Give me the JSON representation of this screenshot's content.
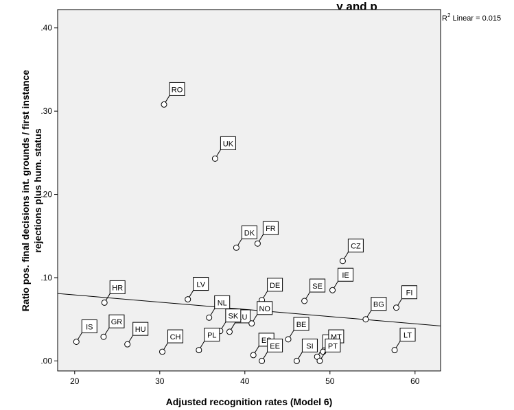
{
  "chart_data": {
    "type": "scatter",
    "title": "y and p",
    "xlabel": "Adjusted recognition rates (Model 6)",
    "ylabel_line1": "Ratio pos. final decisions  int. grounds / first instance",
    "ylabel_line2": "rejections plus hum. status",
    "xlim": [
      18,
      63
    ],
    "ylim": [
      -0.012,
      0.422
    ],
    "x_ticks": [
      20,
      30,
      40,
      50,
      60
    ],
    "x_tick_labels": [
      "20",
      "30",
      "40",
      "50",
      "60"
    ],
    "y_ticks": [
      0.0,
      0.1,
      0.2,
      0.3,
      0.4
    ],
    "y_tick_labels": [
      ".00",
      ".10",
      ".20",
      ".30",
      ".40"
    ],
    "fit": {
      "label_prefix": "R",
      "label_sup": "2",
      "label_rest": " Linear = 0.015",
      "x0": 18,
      "y0": 0.081,
      "x1": 63,
      "y1": 0.042
    },
    "points": [
      {
        "label": "RO",
        "x": 30.5,
        "y": 0.308
      },
      {
        "label": "UK",
        "x": 36.5,
        "y": 0.243
      },
      {
        "label": "DK",
        "x": 39.0,
        "y": 0.136
      },
      {
        "label": "FR",
        "x": 41.5,
        "y": 0.141
      },
      {
        "label": "CZ",
        "x": 51.5,
        "y": 0.12
      },
      {
        "label": "HR",
        "x": 23.5,
        "y": 0.07
      },
      {
        "label": "LV",
        "x": 33.3,
        "y": 0.074
      },
      {
        "label": "DE",
        "x": 42.0,
        "y": 0.073
      },
      {
        "label": "SE",
        "x": 47.0,
        "y": 0.072
      },
      {
        "label": "IE",
        "x": 50.3,
        "y": 0.085
      },
      {
        "label": "BG",
        "x": 54.2,
        "y": 0.05
      },
      {
        "label": "FI",
        "x": 57.8,
        "y": 0.064
      },
      {
        "label": "NL",
        "x": 35.8,
        "y": 0.052
      },
      {
        "label": "LU",
        "x": 38.2,
        "y": 0.035
      },
      {
        "label": "NO",
        "x": 40.8,
        "y": 0.045
      },
      {
        "label": "SK",
        "x": 37.1,
        "y": 0.036
      },
      {
        "label": "IS",
        "x": 20.2,
        "y": 0.023
      },
      {
        "label": "GR",
        "x": 23.4,
        "y": 0.029
      },
      {
        "label": "HU",
        "x": 26.2,
        "y": 0.02
      },
      {
        "label": "CH",
        "x": 30.3,
        "y": 0.011
      },
      {
        "label": "PL",
        "x": 34.6,
        "y": 0.013
      },
      {
        "label": "ES",
        "x": 41.0,
        "y": 0.007
      },
      {
        "label": "EE",
        "x": 42.0,
        "y": 0.0
      },
      {
        "label": "BE",
        "x": 45.1,
        "y": 0.026
      },
      {
        "label": "SI",
        "x": 46.1,
        "y": 0.0
      },
      {
        "label": "IT",
        "x": 48.5,
        "y": 0.005
      },
      {
        "label": "MT",
        "x": 49.2,
        "y": 0.011
      },
      {
        "label": "PT",
        "x": 48.8,
        "y": 0.0
      },
      {
        "label": "LT",
        "x": 57.6,
        "y": 0.013
      }
    ]
  }
}
